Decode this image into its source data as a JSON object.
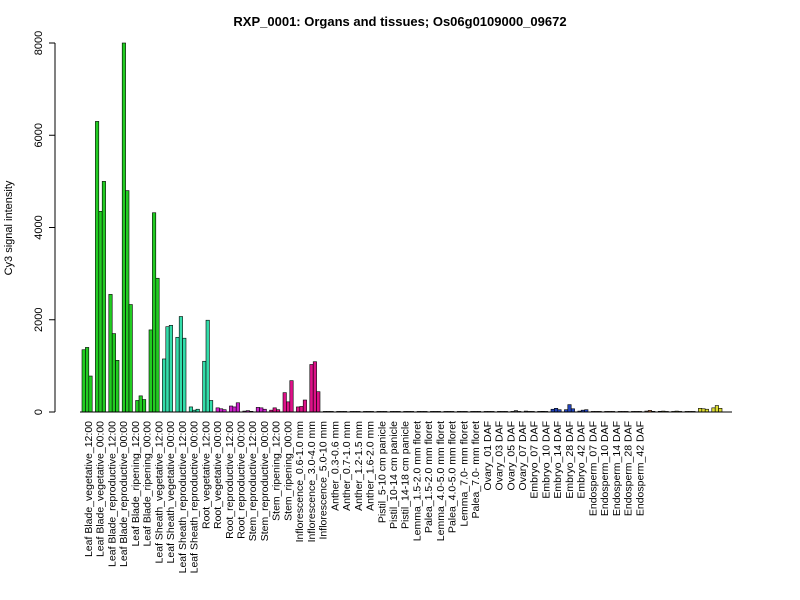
{
  "chart_data": {
    "type": "bar",
    "title": "RXP_0001: Organs and tissues; Os06g0109000_09672",
    "xlabel": "",
    "ylabel": "Cy3 signal intensity",
    "ylim": [
      0,
      8000
    ],
    "yticks": [
      0,
      2000,
      4000,
      6000,
      8000
    ],
    "grid": false,
    "legend": "none",
    "groups": [
      {
        "label": "Leaf Blade_vegetative_12:00",
        "color": "#22cc22",
        "values": [
          1350,
          1400,
          780
        ]
      },
      {
        "label": "Leaf Blade_vegetative_00:00",
        "color": "#22cc22",
        "values": [
          6300,
          4350,
          5000
        ]
      },
      {
        "label": "Leaf Blade_reproductive_12:00",
        "color": "#22cc22",
        "values": [
          2550,
          1700,
          1120
        ]
      },
      {
        "label": "Leaf Blade_reproductive_00:00",
        "color": "#22cc22",
        "values": [
          8000,
          4800,
          2330
        ]
      },
      {
        "label": "Leaf Blade_ripening_12:00",
        "color": "#22cc22",
        "values": [
          250,
          350,
          270
        ]
      },
      {
        "label": "Leaf Blade_ripening_00:00",
        "color": "#22cc22",
        "values": [
          1780,
          4320,
          2900
        ]
      },
      {
        "label": "Leaf Sheath_vegetative_12:00",
        "color": "#33ddaa",
        "values": [
          1150,
          1850,
          1880
        ]
      },
      {
        "label": "Leaf Sheath_vegetative_00:00",
        "color": "#33ddaa",
        "values": [
          1620,
          2070,
          1600
        ]
      },
      {
        "label": "Leaf Sheath_reproductive_12:00",
        "color": "#33ddaa",
        "values": [
          110,
          40,
          60
        ]
      },
      {
        "label": "Leaf Sheath_reproductive_00:00",
        "color": "#33ddaa",
        "values": [
          1100,
          1990,
          250
        ]
      },
      {
        "label": "Root_vegetative_12:00",
        "color": "#cc22cc",
        "values": [
          90,
          70,
          50
        ]
      },
      {
        "label": "Root_vegetative_00:00",
        "color": "#cc22cc",
        "values": [
          130,
          110,
          200
        ]
      },
      {
        "label": "Root_reproductive_12:00",
        "color": "#cc22cc",
        "values": [
          20,
          30,
          15
        ]
      },
      {
        "label": "Root_reproductive_00:00",
        "color": "#cc22cc",
        "values": [
          100,
          90,
          60
        ]
      },
      {
        "label": "Stem_reproductive_12:00",
        "color": "#dd1188",
        "values": [
          40,
          90,
          50
        ]
      },
      {
        "label": "Stem_reproductive_00:00",
        "color": "#dd1188",
        "values": [
          420,
          220,
          680
        ]
      },
      {
        "label": "Stem_ripening_12:00",
        "color": "#dd1188",
        "values": [
          110,
          120,
          260
        ]
      },
      {
        "label": "Stem_ripening_00:00",
        "color": "#dd1188",
        "values": [
          1030,
          1090,
          440
        ]
      },
      {
        "label": "Inflorescence_0.6-1.0 mm",
        "color": "#555555",
        "values": [
          10,
          8,
          12
        ]
      },
      {
        "label": "Inflorescence_3.0-4.0 mm",
        "color": "#555555",
        "values": [
          8,
          10,
          9
        ]
      },
      {
        "label": "Inflorescence_5.0-10 mm",
        "color": "#555555",
        "values": [
          12,
          9,
          11
        ]
      },
      {
        "label": "Anther_0.3-0.6 mm",
        "color": "#555555",
        "values": [
          7,
          9,
          8
        ]
      },
      {
        "label": "Anther_0.7-1.0 mm",
        "color": "#555555",
        "values": [
          6,
          8,
          7
        ]
      },
      {
        "label": "Anther_1.2-1.5 mm",
        "color": "#555555",
        "values": [
          8,
          6,
          9
        ]
      },
      {
        "label": "Anther_1.6-2.0 mm",
        "color": "#555555",
        "values": [
          7,
          8,
          6
        ]
      },
      {
        "label": "Pistil_5-10 cm panicle",
        "color": "#555555",
        "values": [
          9,
          7,
          8
        ]
      },
      {
        "label": "Pistil_10-14 cm panicle",
        "color": "#555555",
        "values": [
          8,
          10,
          7
        ]
      },
      {
        "label": "Pistil_14-18 cm panicle",
        "color": "#555555",
        "values": [
          7,
          8,
          9
        ]
      },
      {
        "label": "Lemma_1.5-2.0 mm floret",
        "color": "#555555",
        "values": [
          8,
          7,
          9
        ]
      },
      {
        "label": "Palea_1.5-2.0 mm floret",
        "color": "#555555",
        "values": [
          9,
          8,
          7
        ]
      },
      {
        "label": "Lemma_4.0-5.0 mm floret",
        "color": "#555555",
        "values": [
          7,
          9,
          8
        ]
      },
      {
        "label": "Palea_4.0-5.0 mm floret",
        "color": "#555555",
        "values": [
          8,
          7,
          9
        ]
      },
      {
        "label": "Lemma_7.0- mm floret",
        "color": "#555555",
        "values": [
          9,
          30,
          10
        ]
      },
      {
        "label": "Palea_7.0- mm floret",
        "color": "#555555",
        "values": [
          20,
          8,
          10
        ]
      },
      {
        "label": "Ovary_01 DAF",
        "color": "#2244bb",
        "values": [
          10,
          15,
          12
        ]
      },
      {
        "label": "Ovary_03 DAF",
        "color": "#2244bb",
        "values": [
          60,
          80,
          50
        ]
      },
      {
        "label": "Ovary_05 DAF",
        "color": "#2244bb",
        "values": [
          50,
          160,
          70
        ]
      },
      {
        "label": "Ovary_07 DAF",
        "color": "#2244bb",
        "values": [
          20,
          40,
          50
        ]
      },
      {
        "label": "Embryo_07 DAF",
        "color": "#cc7744",
        "values": [
          10,
          12,
          8
        ]
      },
      {
        "label": "Embryo_10 DAF",
        "color": "#cc7744",
        "values": [
          8,
          10,
          9
        ]
      },
      {
        "label": "Embryo_14 DAF",
        "color": "#cc7744",
        "values": [
          9,
          7,
          10
        ]
      },
      {
        "label": "Embryo_28 DAF",
        "color": "#cc7744",
        "values": [
          10,
          8,
          12
        ]
      },
      {
        "label": "Embryo_42 DAF",
        "color": "#cc7744",
        "values": [
          20,
          35,
          15
        ]
      },
      {
        "label": "Endosperm_07 DAF",
        "color": "#dddd33",
        "values": [
          15,
          20,
          12
        ]
      },
      {
        "label": "Endosperm_10 DAF",
        "color": "#dddd33",
        "values": [
          12,
          20,
          10
        ]
      },
      {
        "label": "Endosperm_14 DAF",
        "color": "#dddd33",
        "values": [
          10,
          12,
          9
        ]
      },
      {
        "label": "Endosperm_28 DAF",
        "color": "#dddd33",
        "values": [
          80,
          70,
          60
        ]
      },
      {
        "label": "Endosperm_42 DAF",
        "color": "#dddd33",
        "values": [
          90,
          140,
          80
        ]
      }
    ],
    "visible_category_labels": [
      "Leaf Blade_vegetative_12:00",
      "Leaf Blade_vegetative_00:00",
      "Leaf Blade_reproductive_12:00",
      "Leaf Blade_reproductive_00:00",
      "Leaf Blade_ripening_12:00",
      "Leaf Blade_ripening_00:00",
      "Leaf Sheath_vegetative_12:00",
      "Leaf Sheath_vegetative_00:00",
      "Leaf Sheath_reproductive_12:00",
      "Leaf Sheath_reproductive_00:00",
      "Root_vegetative_12:00",
      "Root_vegetative_00:00",
      "Root_reproductive_12:00",
      "Root_reproductive_00:00",
      "Stem_reproductive_12:00",
      "Stem_reproductive_00:00",
      "Stem_ripening_12:00",
      "Stem_ripening_00:00",
      "Inflorescence_0.6-1.0 mm",
      "Inflorescence_3.0-4.0 mm",
      "Inflorescence_5.0-10 mm",
      "Anther_0.3-0.6 mm",
      "Anther_0.7-1.0 mm",
      "Anther_1.2-1.5 mm",
      "Anther_1.6-2.0 mm",
      "Pistil_5-10 cm panicle",
      "Pistil_10-14 cm panicle",
      "Pistil_14-18 cm panicle",
      "Lemma_1.5-2.0 mm floret",
      "Palea_1.5-2.0 mm floret",
      "Lemma_4.0-5.0 mm floret",
      "Palea_4.0-5.0 mm floret",
      "Lemma_7.0- mm floret",
      "Palea_7.0- mm floret",
      "Ovary_01 DAF",
      "Ovary_03 DAF",
      "Ovary_05 DAF",
      "Ovary_07 DAF",
      "Embryo_07 DAF",
      "Embryo_10 DAF",
      "Embryo_14 DAF",
      "Embryo_28 DAF",
      "Embryo_42 DAF",
      "Endosperm_07 DAF",
      "Endosperm_10 DAF",
      "Endosperm_14 DAF",
      "Endosperm_28 DAF",
      "Endosperm_42 DAF"
    ]
  }
}
